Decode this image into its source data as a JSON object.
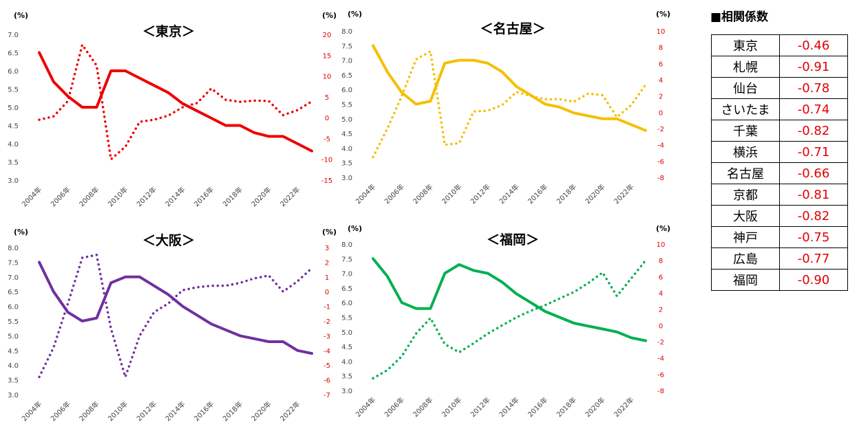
{
  "correlation": {
    "title": "■相関係数",
    "rows": [
      {
        "city": "東京",
        "value": "-0.46"
      },
      {
        "city": "札幌",
        "value": "-0.91"
      },
      {
        "city": "仙台",
        "value": "-0.78"
      },
      {
        "city": "さいたま",
        "value": "-0.74"
      },
      {
        "city": "千葉",
        "value": "-0.82"
      },
      {
        "city": "横浜",
        "value": "-0.71"
      },
      {
        "city": "名古屋",
        "value": "-0.66"
      },
      {
        "city": "京都",
        "value": "-0.81"
      },
      {
        "city": "大阪",
        "value": "-0.82"
      },
      {
        "city": "神戸",
        "value": "-0.75"
      },
      {
        "city": "広島",
        "value": "-0.77"
      },
      {
        "city": "福岡",
        "value": "-0.90"
      }
    ]
  },
  "chart_data": [
    {
      "type": "line",
      "title": "＜東京＞",
      "color": "#ee0000",
      "left_unit": "(%)",
      "right_unit": "(%)",
      "x": [
        2004,
        2005,
        2006,
        2007,
        2008,
        2009,
        2010,
        2011,
        2012,
        2013,
        2014,
        2015,
        2016,
        2017,
        2018,
        2019,
        2020,
        2021,
        2022,
        2023
      ],
      "xticks": [
        "2004年",
        "2006年",
        "2008年",
        "2010年",
        "2012年",
        "2014年",
        "2016年",
        "2018年",
        "2020年",
        "2022年"
      ],
      "left_ylim": [
        3.0,
        7.0
      ],
      "left_ticks": [
        "3.0",
        "3.5",
        "4.0",
        "4.5",
        "5.0",
        "5.5",
        "6.0",
        "6.5",
        "7.0"
      ],
      "right_ylim": [
        -15,
        20
      ],
      "right_ticks": [
        "-15",
        "-10",
        "-5",
        "0",
        "5",
        "10",
        "15",
        "20"
      ],
      "series": [
        {
          "axis": "left",
          "style": "solid",
          "values": [
            6.5,
            5.7,
            5.3,
            5.0,
            5.0,
            6.0,
            6.0,
            5.8,
            5.6,
            5.4,
            5.1,
            4.9,
            4.7,
            4.5,
            4.5,
            4.3,
            4.2,
            4.2,
            4.0,
            3.8
          ]
        },
        {
          "axis": "right",
          "style": "dotted",
          "values": [
            -0.5,
            0.3,
            4,
            17.5,
            12.5,
            -10,
            -7,
            -1,
            -0.5,
            0.5,
            2.5,
            3.5,
            7,
            4.3,
            3.8,
            4.1,
            4,
            0.6,
            1.8,
            3.9
          ]
        }
      ]
    },
    {
      "type": "line",
      "title": "＜名古屋＞",
      "color": "#f5bf00",
      "left_unit": "(%)",
      "right_unit": "(%)",
      "x": [
        2004,
        2005,
        2006,
        2007,
        2008,
        2009,
        2010,
        2011,
        2012,
        2013,
        2014,
        2015,
        2016,
        2017,
        2018,
        2019,
        2020,
        2021,
        2022,
        2023
      ],
      "xticks": [
        "2004年",
        "2006年",
        "2008年",
        "2010年",
        "2012年",
        "2014年",
        "2016年",
        "2018年",
        "2020年",
        "2022年"
      ],
      "left_ylim": [
        3.0,
        8.0
      ],
      "left_ticks": [
        "3.0",
        "3.5",
        "4.0",
        "4.5",
        "5.0",
        "5.5",
        "6.0",
        "6.5",
        "7.0",
        "7.5",
        "8.0"
      ],
      "right_ylim": [
        -8,
        10
      ],
      "right_ticks": [
        "-8",
        "-6",
        "-4",
        "-2",
        "0",
        "2",
        "4",
        "6",
        "8",
        "10"
      ],
      "series": [
        {
          "axis": "left",
          "style": "solid",
          "values": [
            7.5,
            6.6,
            5.9,
            5.5,
            5.6,
            6.9,
            7.0,
            7.0,
            6.9,
            6.6,
            6.1,
            5.8,
            5.5,
            5.4,
            5.2,
            5.1,
            5.0,
            5.0,
            4.8,
            4.6
          ]
        },
        {
          "axis": "right",
          "style": "dotted",
          "values": [
            -5.5,
            -2,
            2,
            6.5,
            7.5,
            -4,
            -3.8,
            0.1,
            0.2,
            0.9,
            2.5,
            2,
            1.6,
            1.6,
            1.3,
            2.3,
            2.1,
            -0.6,
            0.9,
            3.4
          ]
        }
      ]
    },
    {
      "type": "line",
      "title": "＜大阪＞",
      "color": "#7030a0",
      "left_unit": "(%)",
      "right_unit": "(%)",
      "x": [
        2004,
        2005,
        2006,
        2007,
        2008,
        2009,
        2010,
        2011,
        2012,
        2013,
        2014,
        2015,
        2016,
        2017,
        2018,
        2019,
        2020,
        2021,
        2022,
        2023
      ],
      "xticks": [
        "2004年",
        "2006年",
        "2008年",
        "2010年",
        "2012年",
        "2014年",
        "2016年",
        "2018年",
        "2020年",
        "2022年"
      ],
      "left_ylim": [
        3.0,
        8.0
      ],
      "left_ticks": [
        "3.0",
        "3.5",
        "4.0",
        "4.5",
        "5.0",
        "5.5",
        "6.0",
        "6.5",
        "7.0",
        "7.5",
        "8.0"
      ],
      "right_ylim": [
        -7,
        3
      ],
      "right_ticks": [
        "-7",
        "-6",
        "-5",
        "-4",
        "-3",
        "-2",
        "-1",
        "0",
        "1",
        "2",
        "3"
      ],
      "series": [
        {
          "axis": "left",
          "style": "solid",
          "values": [
            7.5,
            6.5,
            5.8,
            5.5,
            5.6,
            6.8,
            7.0,
            7.0,
            6.7,
            6.4,
            6.0,
            5.7,
            5.4,
            5.2,
            5.0,
            4.9,
            4.8,
            4.8,
            4.5,
            4.4
          ]
        },
        {
          "axis": "right",
          "style": "dotted",
          "values": [
            -5.8,
            -3.8,
            -0.8,
            2.3,
            2.5,
            -2.5,
            -5.8,
            -3,
            -1.4,
            -0.8,
            0.1,
            0.3,
            0.4,
            0.4,
            0.6,
            0.9,
            1.1,
            0,
            0.7,
            1.6
          ]
        }
      ]
    },
    {
      "type": "line",
      "title": "＜福岡＞",
      "color": "#00b050",
      "left_unit": "(%)",
      "right_unit": "(%)",
      "x": [
        2004,
        2005,
        2006,
        2007,
        2008,
        2009,
        2010,
        2011,
        2012,
        2013,
        2014,
        2015,
        2016,
        2017,
        2018,
        2019,
        2020,
        2021,
        2022,
        2023
      ],
      "xticks": [
        "2004年",
        "2006年",
        "2008年",
        "2010年",
        "2012年",
        "2014年",
        "2016年",
        "2018年",
        "2020年",
        "2022年"
      ],
      "left_ylim": [
        3.0,
        8.0
      ],
      "left_ticks": [
        "3.0",
        "3.5",
        "4.0",
        "4.5",
        "5.0",
        "5.5",
        "6.0",
        "6.5",
        "7.0",
        "7.5",
        "8.0"
      ],
      "right_ylim": [
        -8,
        10
      ],
      "right_ticks": [
        "-8",
        "-6",
        "-4",
        "-2",
        "0",
        "2",
        "4",
        "6",
        "8",
        "10"
      ],
      "series": [
        {
          "axis": "left",
          "style": "solid",
          "values": [
            7.5,
            6.9,
            6.0,
            5.8,
            5.8,
            7.0,
            7.3,
            7.1,
            7.0,
            6.7,
            6.3,
            6.0,
            5.7,
            5.5,
            5.3,
            5.2,
            5.1,
            5.0,
            4.8,
            4.7
          ]
        },
        {
          "axis": "right",
          "style": "dotted",
          "values": [
            -6.5,
            -5.5,
            -3.8,
            -1,
            0.9,
            -2.3,
            -3.3,
            -2.2,
            -1,
            0,
            1,
            1.8,
            2.5,
            3.3,
            4.1,
            5.2,
            6.5,
            3.6,
            5.8,
            8
          ]
        }
      ]
    }
  ]
}
